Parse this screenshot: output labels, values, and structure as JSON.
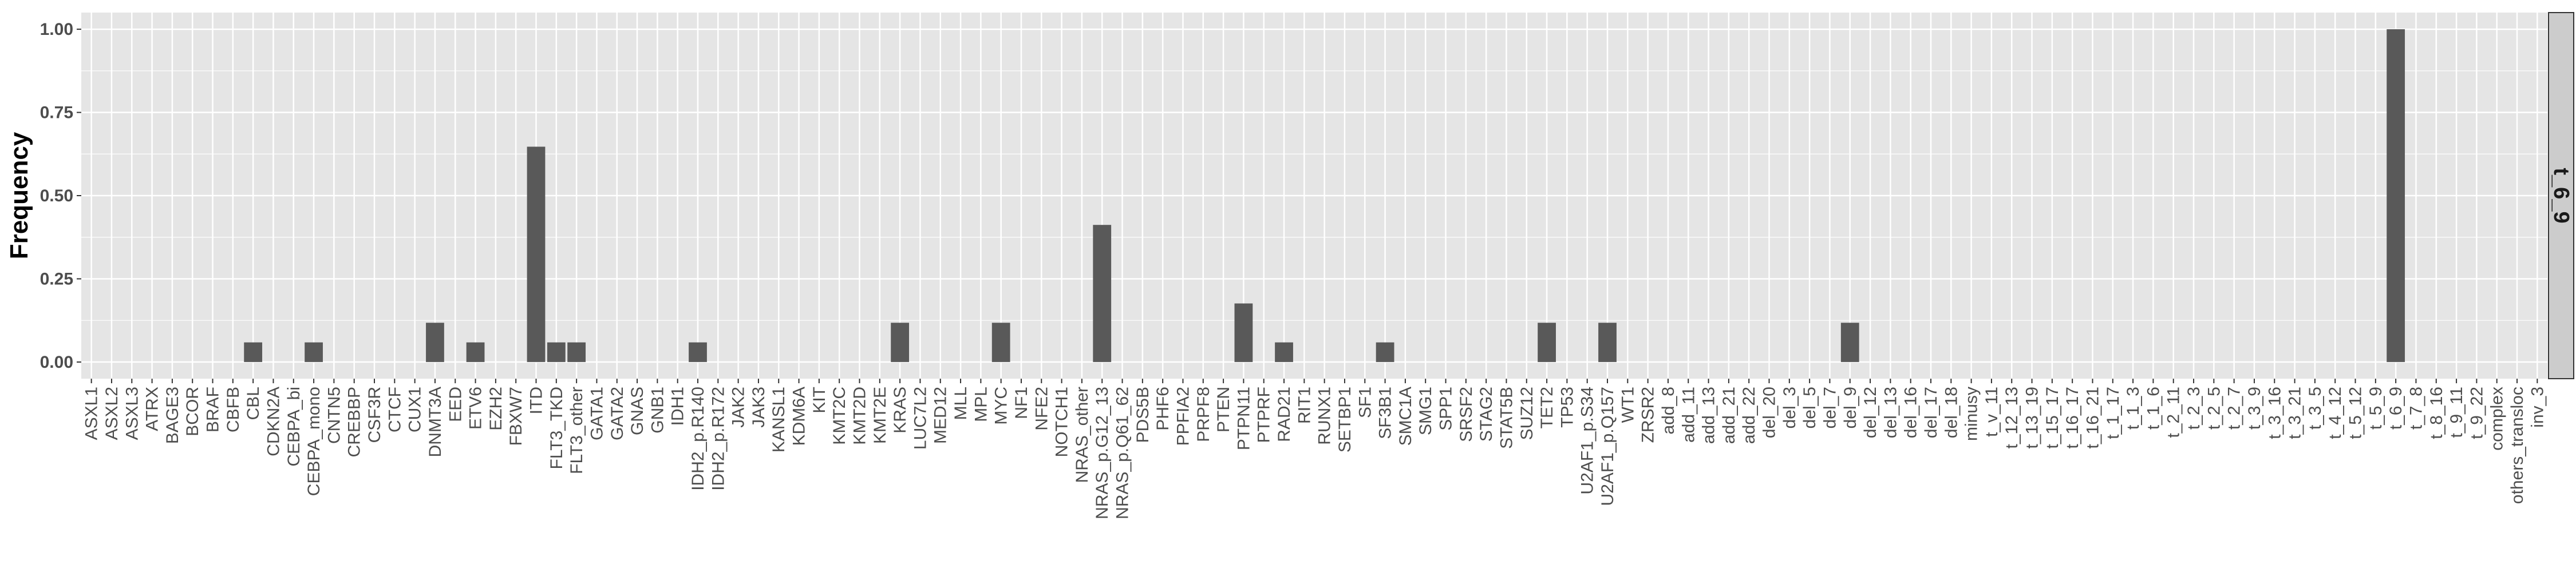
{
  "chart_data": {
    "type": "bar",
    "ylabel": "Frequency",
    "xlabel": "",
    "ylim": [
      -0.05,
      1.05
    ],
    "yticks": [
      "0.00",
      "0.25",
      "0.50",
      "0.75",
      "1.00"
    ],
    "grid": true,
    "facet_label": "t_6_9",
    "colors": {
      "panel": "#e5e5e5",
      "grid": "#ffffff",
      "bar": "#595959",
      "strip": "#cccccc",
      "tick_text": "#4d4d4d"
    },
    "categories": [
      "ASXL1",
      "ASXL2",
      "ASXL3",
      "ATRX",
      "BAGE3",
      "BCOR",
      "BRAF",
      "CBFB",
      "CBL",
      "CDKN2A",
      "CEBPA_bi",
      "CEBPA_mono",
      "CNTN5",
      "CREBBP",
      "CSF3R",
      "CTCF",
      "CUX1",
      "DNMT3A",
      "EED",
      "ETV6",
      "EZH2",
      "FBXW7",
      "ITD",
      "FLT3_TKD",
      "FLT3_other",
      "GATA1",
      "GATA2",
      "GNAS",
      "GNB1",
      "IDH1",
      "IDH2_p.R140",
      "IDH2_p.R172",
      "JAK2",
      "JAK3",
      "KANSL1",
      "KDM6A",
      "KIT",
      "KMT2C",
      "KMT2D",
      "KMT2E",
      "KRAS",
      "LUC7L2",
      "MED12",
      "MLL",
      "MPL",
      "MYC",
      "NF1",
      "NFE2",
      "NOTCH1",
      "NRAS_other",
      "NRAS_p.G12_13",
      "NRAS_p.Q61_62",
      "PDS5B",
      "PHF6",
      "PPFIA2",
      "PRPF8",
      "PTEN",
      "PTPN11",
      "PTPRF",
      "RAD21",
      "RIT1",
      "RUNX1",
      "SETBP1",
      "SF1",
      "SF3B1",
      "SMC1A",
      "SMG1",
      "SPP1",
      "SRSF2",
      "STAG2",
      "STAT5B",
      "SUZ12",
      "TET2",
      "TP53",
      "U2AF1_p.S34",
      "U2AF1_p.Q157",
      "WT1",
      "ZRSR2",
      "add_8",
      "add_11",
      "add_13",
      "add_21",
      "add_22",
      "del_20",
      "del_3",
      "del_5",
      "del_7",
      "del_9",
      "del_12",
      "del_13",
      "del_16",
      "del_17",
      "del_18",
      "minusy",
      "t_v_11",
      "t_12_13",
      "t_13_19",
      "t_15_17",
      "t_16_17",
      "t_16_21",
      "t_1_17",
      "t_1_3",
      "t_1_6",
      "t_2_11",
      "t_2_3",
      "t_2_5",
      "t_2_7",
      "t_3_9",
      "t_3_16",
      "t_3_21",
      "t_3_5",
      "t_4_12",
      "t_5_12",
      "t_5_9",
      "t_6_9",
      "t_7_8",
      "t_8_16",
      "t_9_11",
      "t_9_22",
      "complex",
      "others_transloc",
      "inv_3"
    ],
    "values": [
      0,
      0,
      0,
      0,
      0,
      0,
      0,
      0,
      0.059,
      0,
      0,
      0.059,
      0,
      0,
      0,
      0,
      0,
      0.118,
      0,
      0.059,
      0,
      0,
      0.647,
      0.059,
      0.059,
      0,
      0,
      0,
      0,
      0,
      0.059,
      0,
      0,
      0,
      0,
      0,
      0,
      0,
      0,
      0,
      0.118,
      0,
      0,
      0,
      0,
      0.118,
      0,
      0,
      0,
      0,
      0.412,
      0,
      0,
      0,
      0,
      0,
      0,
      0.176,
      0,
      0.059,
      0,
      0,
      0,
      0,
      0.059,
      0,
      0,
      0,
      0,
      0,
      0,
      0,
      0.118,
      0,
      0,
      0.118,
      0,
      0,
      0,
      0,
      0,
      0,
      0,
      0,
      0,
      0,
      0,
      0.118,
      0,
      0,
      0,
      0,
      0,
      0,
      0,
      0,
      0,
      0,
      0,
      0,
      0,
      0,
      0,
      0,
      0,
      0,
      0,
      0,
      0,
      0,
      0,
      0,
      0,
      0,
      1.0,
      0,
      0,
      0,
      0,
      0,
      0,
      0
    ]
  }
}
